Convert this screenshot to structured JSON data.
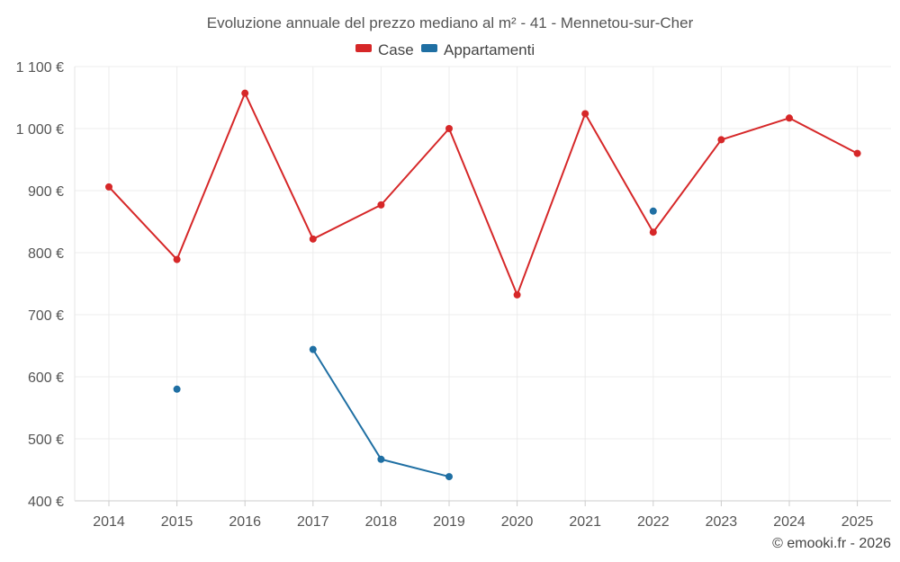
{
  "chart_data": {
    "type": "line",
    "title": "Evoluzione annuale del prezzo mediano al m² - 41 - Mennetou-sur-Cher",
    "categories": [
      "2014",
      "2015",
      "2016",
      "2017",
      "2018",
      "2019",
      "2020",
      "2021",
      "2022",
      "2023",
      "2024",
      "2025"
    ],
    "y_ticks": [
      "400 €",
      "500 €",
      "600 €",
      "700 €",
      "800 €",
      "900 €",
      "1 000 €",
      "1 100 €"
    ],
    "y_tick_values": [
      400,
      500,
      600,
      700,
      800,
      900,
      1000,
      1100
    ],
    "ylim": [
      400,
      1100
    ],
    "grid": true,
    "legend_position": "top-center",
    "series": [
      {
        "name": "Case",
        "color": "#d62728",
        "values": [
          906,
          789,
          1057,
          822,
          877,
          1000,
          732,
          1024,
          833,
          982,
          1017,
          960
        ]
      },
      {
        "name": "Appartamenti",
        "color": "#1f6fa3",
        "values": [
          null,
          580,
          null,
          644,
          467,
          439,
          null,
          null,
          867,
          null,
          null,
          null
        ]
      }
    ],
    "xlabel": "",
    "ylabel": ""
  },
  "credit": "© emooki.fr - 2026"
}
